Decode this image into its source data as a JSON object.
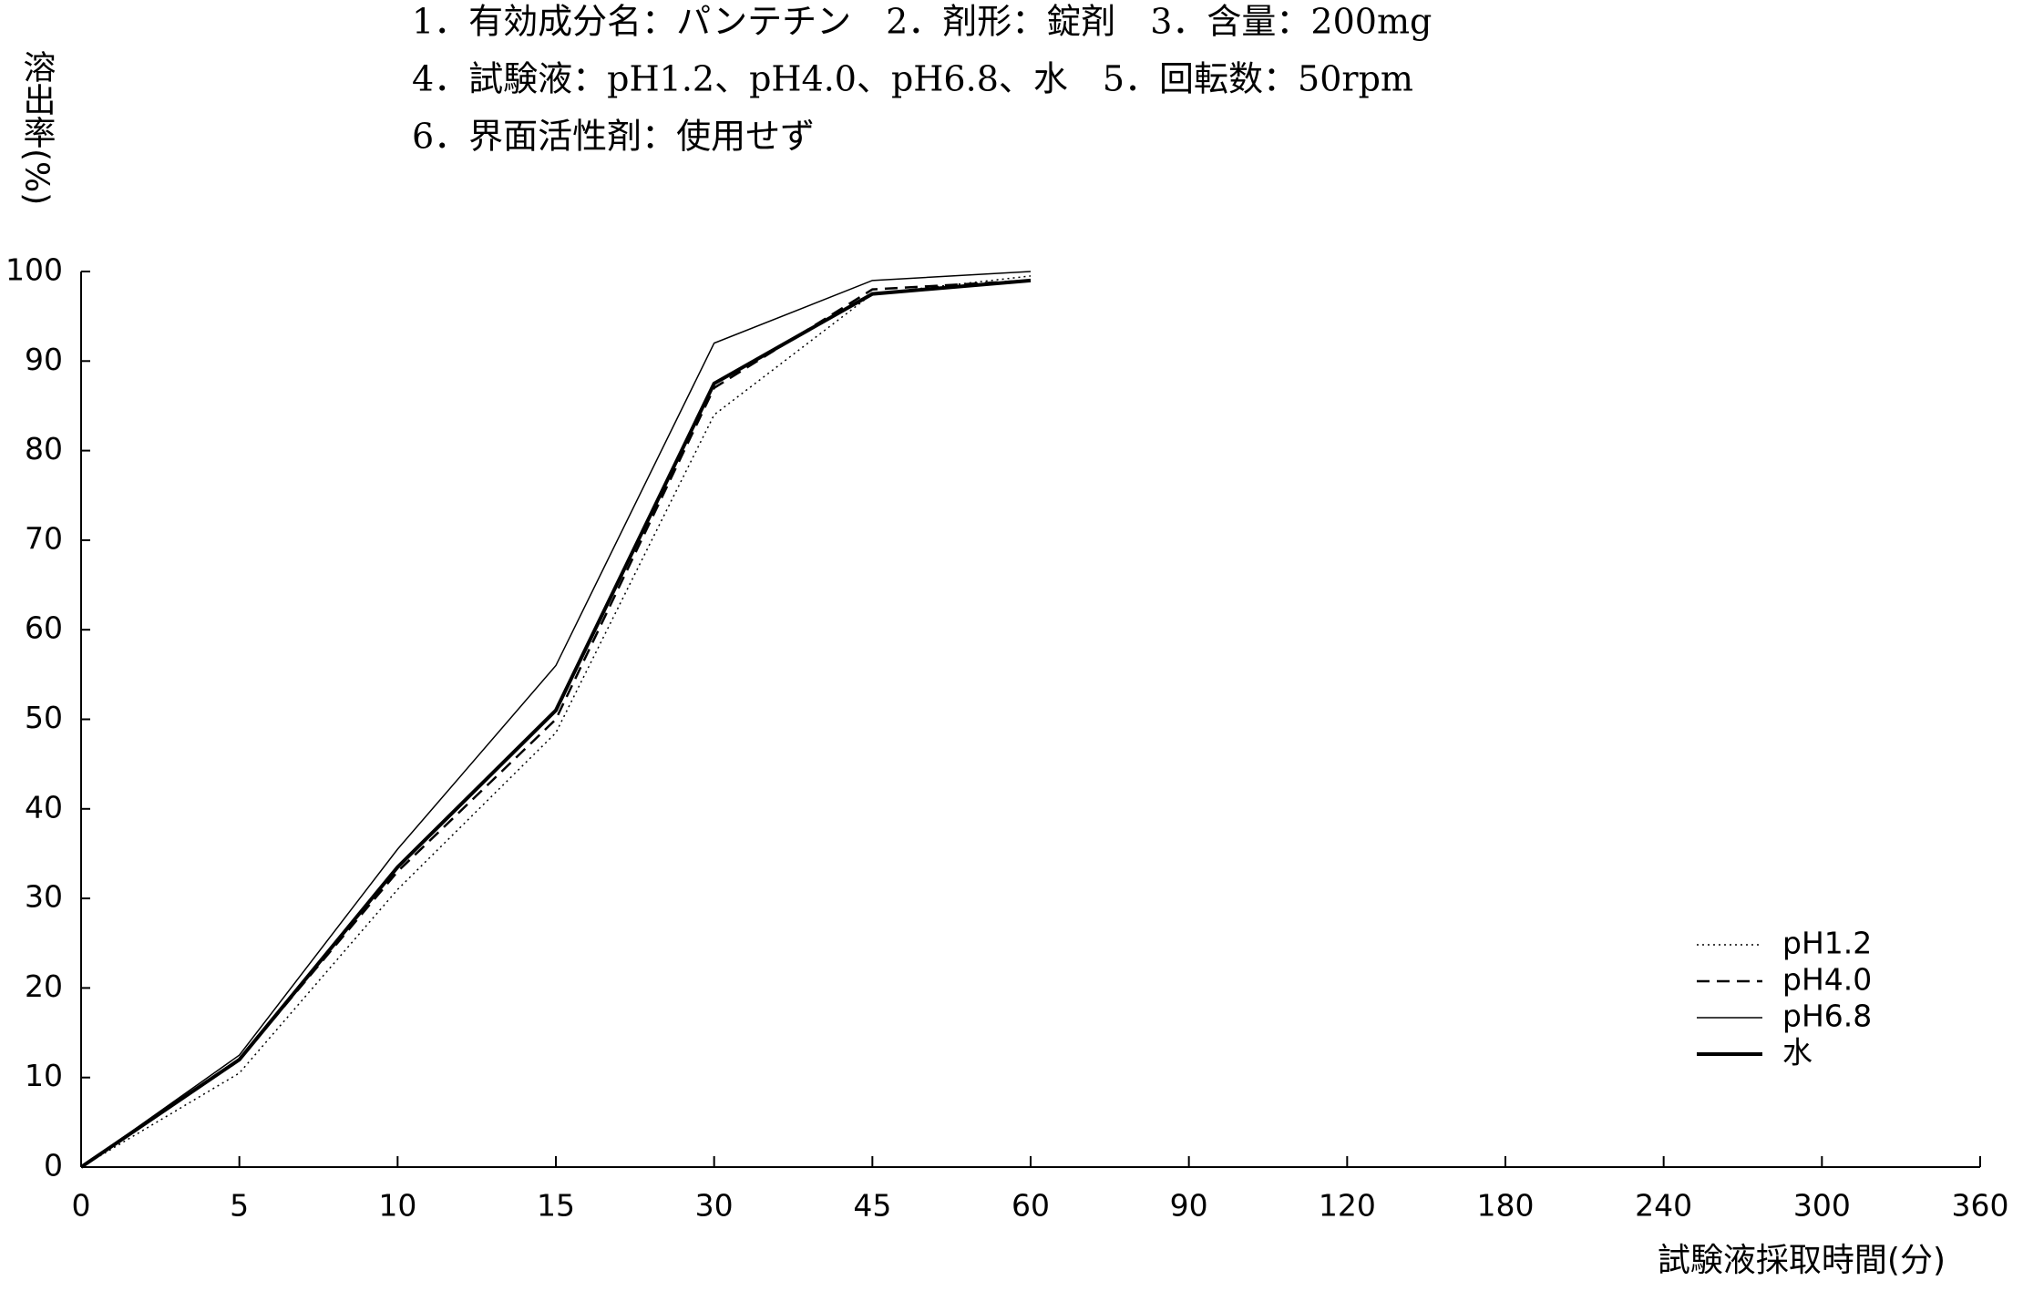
{
  "chart_data": {
    "type": "line",
    "header_lines": [
      "1．有効成分名：パンテチン　2．剤形：錠剤　3．含量：200mg",
      "4．試験液：pH1.2、pH4.0、pH6.8、水　5．回転数：50rpm",
      "6．界面活性剤：使用せず"
    ],
    "ylabel": "溶出率(%)",
    "xlabel": "試験液採取時間(分)",
    "categories": [
      "0",
      "5",
      "10",
      "15",
      "30",
      "45",
      "60",
      "90",
      "120",
      "180",
      "240",
      "300",
      "360"
    ],
    "series": [
      {
        "name": "pH1.2",
        "color": "#000000",
        "line_style": "dotted",
        "line_width": 1.5,
        "values": [
          0,
          10.5,
          31,
          48.5,
          84,
          97.5,
          99.5,
          null,
          null,
          null,
          null,
          null,
          null
        ]
      },
      {
        "name": "pH4.0",
        "color": "#000000",
        "line_style": "dashed",
        "line_width": 2.5,
        "values": [
          0,
          12,
          33,
          50,
          87,
          98,
          99,
          null,
          null,
          null,
          null,
          null,
          null
        ]
      },
      {
        "name": "pH6.8",
        "color": "#000000",
        "line_style": "solid",
        "line_width": 1.5,
        "values": [
          0,
          12.5,
          35.5,
          56,
          92,
          99,
          100,
          null,
          null,
          null,
          null,
          null,
          null
        ]
      },
      {
        "name": "水",
        "color": "#000000",
        "line_style": "solid",
        "line_width": 4,
        "values": [
          0,
          12,
          33.5,
          51,
          87.5,
          97.5,
          99,
          null,
          null,
          null,
          null,
          null,
          null
        ]
      }
    ],
    "ylim": [
      0,
      100
    ],
    "yticks": [
      0,
      10,
      20,
      30,
      40,
      50,
      60,
      70,
      80,
      90,
      100
    ],
    "legend": "lower-right"
  }
}
